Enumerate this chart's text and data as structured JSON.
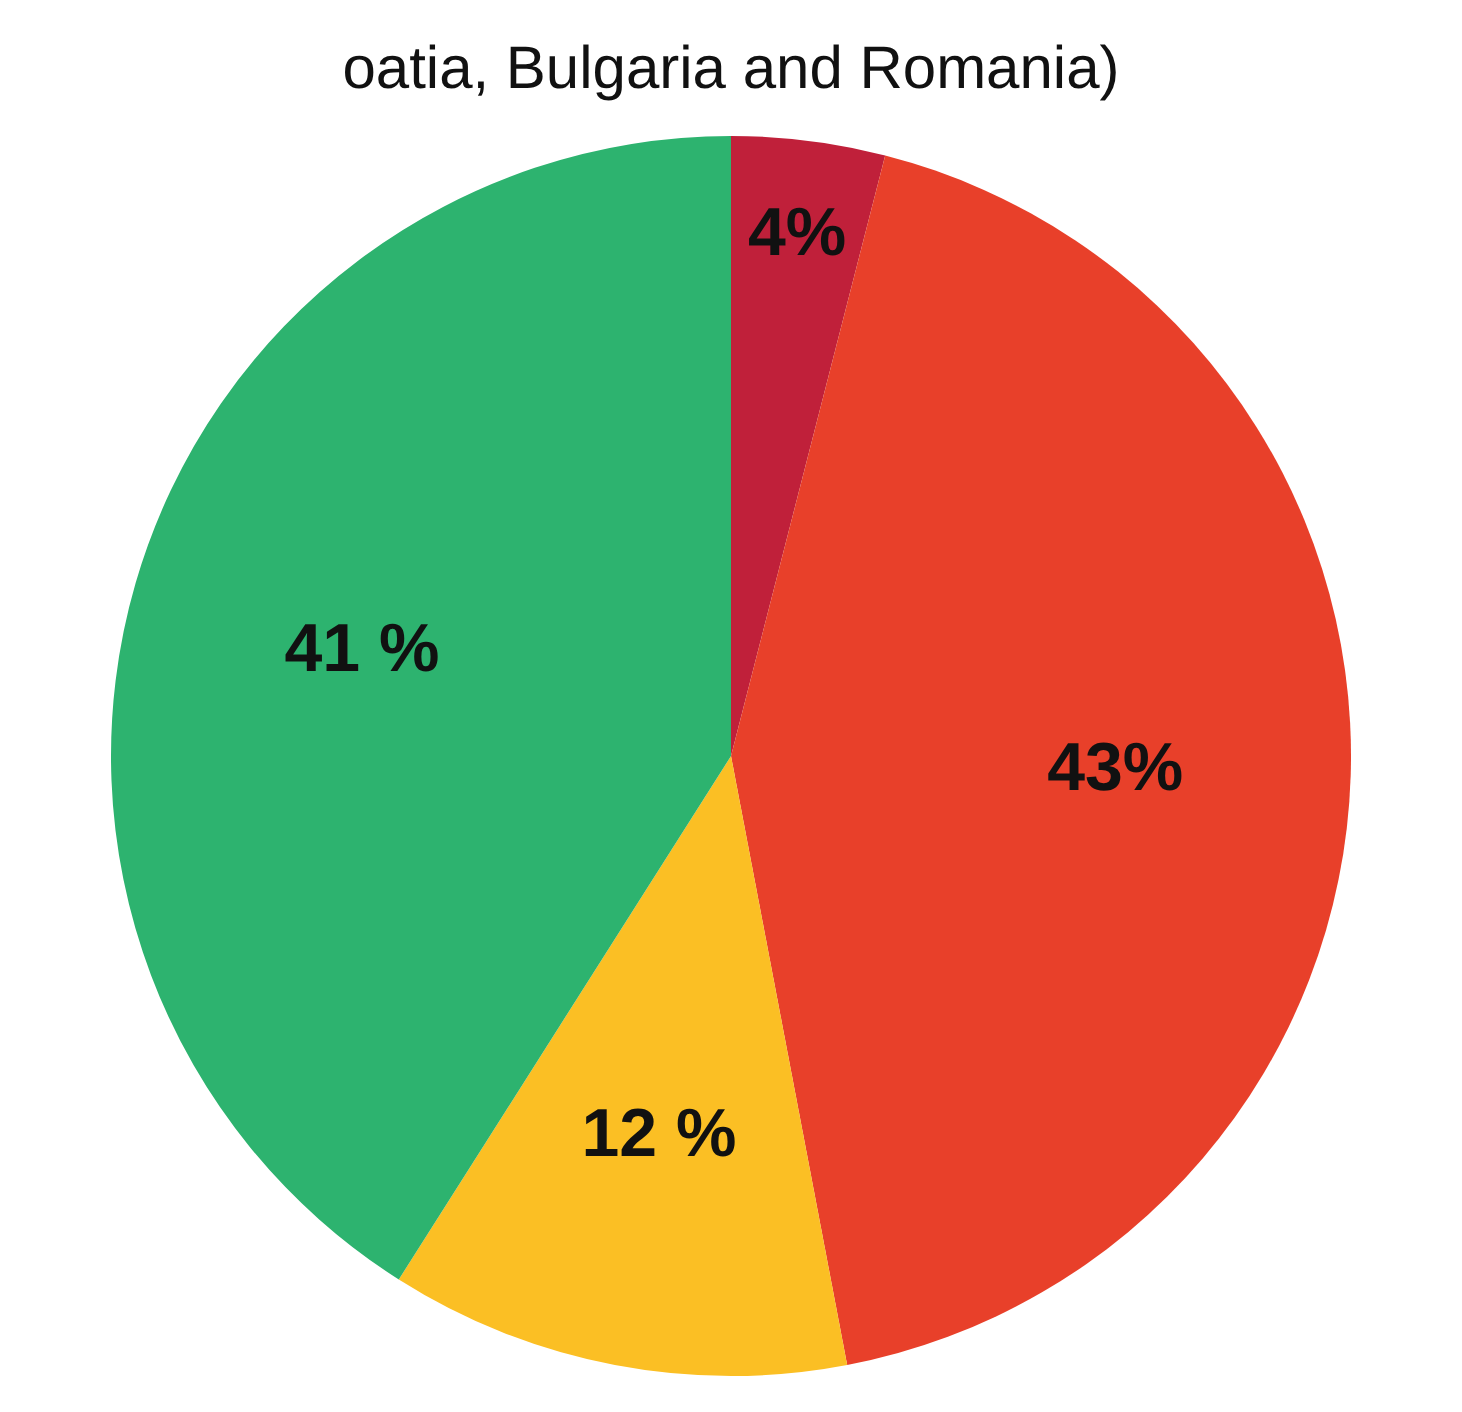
{
  "chart_data": {
    "type": "pie",
    "title": "oatia, Bulgaria and Romania)",
    "categories": [
      null,
      null,
      null,
      null
    ],
    "values": [
      4,
      43,
      12,
      41
    ],
    "colors": [
      "#c0203a",
      "#e8402a",
      "#fbbf24",
      "#2db36f"
    ],
    "value_labels": [
      "4%",
      "43%",
      "12 %",
      "41 %"
    ]
  }
}
